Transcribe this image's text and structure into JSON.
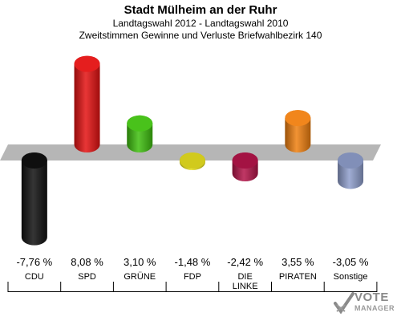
{
  "header": {
    "title": "Stadt Mülheim an der Ruhr",
    "subtitle1": "Landtagswahl 2012 - Landtagswahl 2010",
    "subtitle2": "Zweitstimmen Gewinne und Verluste Briefwahlbezirk 140"
  },
  "chart_data": {
    "type": "bar",
    "categories": [
      "CDU",
      "SPD",
      "GRÜNE",
      "FDP",
      "DIE LINKE",
      "PIRATEN",
      "Sonstige"
    ],
    "category_lines": [
      [
        "CDU"
      ],
      [
        "SPD"
      ],
      [
        "GRÜNE"
      ],
      [
        "FDP"
      ],
      [
        "DIE",
        "LINKE"
      ],
      [
        "PIRATEN"
      ],
      [
        "Sonstige"
      ]
    ],
    "values": [
      -7.76,
      8.08,
      3.1,
      -1.48,
      -2.42,
      3.55,
      -3.05
    ],
    "value_labels": [
      "-7,76 %",
      "8,08 %",
      "3,10 %",
      "-1,48 %",
      "-2,42 %",
      "3,55 %",
      "-3,05 %"
    ],
    "colors": [
      "#111111",
      "#e41212",
      "#3fbf0f",
      "#e8e020",
      "#b5154a",
      "#f08010",
      "#8f9fcc"
    ],
    "baseline_color": "#a8a8a8",
    "grid": false,
    "legend": "none"
  },
  "brand": {
    "line1": "VOTE",
    "line2": "MANAGER"
  }
}
